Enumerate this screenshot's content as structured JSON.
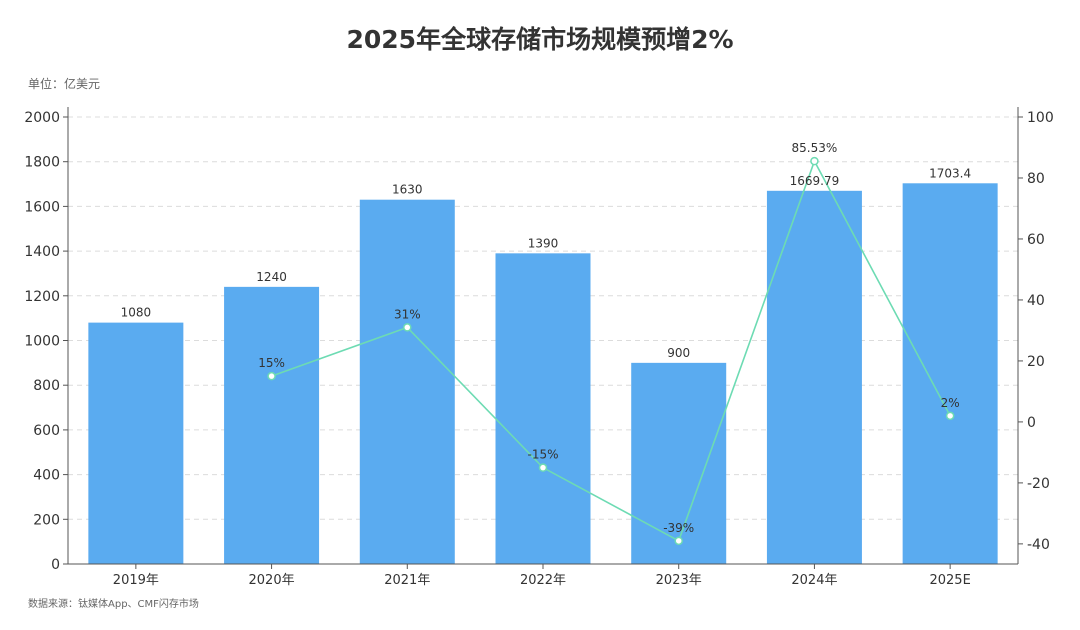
{
  "header": {
    "title": "2025年全球存储市场规模预增2%",
    "unit": "单位：亿美元"
  },
  "footer": {
    "source": "数据来源：钛媒体App、CMF闪存市场"
  },
  "colors": {
    "bar": "#5aabf0",
    "line": "#6ddbb3",
    "grid": "#dcdcdc",
    "axis": "#555555"
  },
  "chart_data": {
    "type": "bar",
    "categories": [
      "2019年",
      "2020年",
      "2021年",
      "2022年",
      "2023年",
      "2024年",
      "2025E"
    ],
    "series": [
      {
        "type": "bar",
        "axis": "left",
        "values": [
          1080,
          1240,
          1630,
          1390,
          900,
          1669.79,
          1703.4
        ],
        "labels": [
          "1080",
          "1240",
          "1630",
          "1390",
          "900",
          "1669.79",
          "1703.4"
        ]
      },
      {
        "type": "line",
        "axis": "right",
        "values": [
          null,
          15,
          31,
          -15,
          -39,
          85.53,
          2
        ],
        "labels": [
          "",
          "15%",
          "31%",
          "-15%",
          "-39%",
          "85.53%",
          "2%"
        ]
      }
    ],
    "yAxisLeft": {
      "min": 0,
      "max": 2000,
      "step": 200,
      "ticks": [
        "0",
        "200",
        "400",
        "600",
        "800",
        "1000",
        "1200",
        "1400",
        "1600",
        "1800",
        "2000"
      ]
    },
    "yAxisRight": {
      "min": -46.6,
      "max": 100,
      "ticks": [
        "-40",
        "-20",
        "0",
        "20",
        "40",
        "60",
        "80",
        "100"
      ]
    },
    "grid": true
  }
}
